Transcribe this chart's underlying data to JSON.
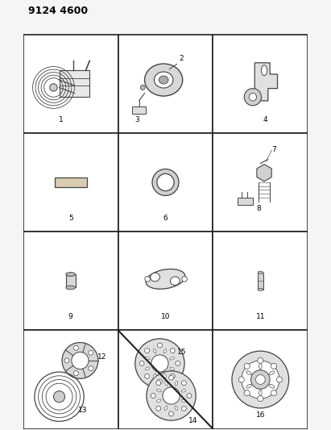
{
  "title": "9124 4600",
  "background_color": "#f5f5f5",
  "cell_bg": "#ffffff",
  "grid_color": "#222222",
  "line_color": "#444444",
  "text_color": "#000000",
  "figsize": [
    4.11,
    5.33
  ],
  "dpi": 100,
  "label_fontsize": 6.5,
  "title_fontsize": 9
}
